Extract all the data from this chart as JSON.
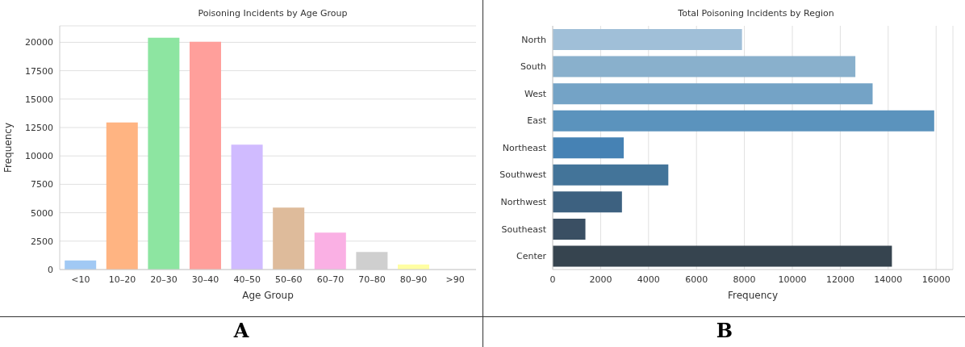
{
  "chart_data": [
    {
      "type": "bar",
      "title": "Poisoning Incidents by Age Group",
      "xlabel": "Age Group",
      "ylabel": "Frequency",
      "categories": [
        "<10",
        "10–20",
        "20–30",
        "30–40",
        "40–50",
        "50–60",
        "60–70",
        "70–80",
        "80–90",
        ">90"
      ],
      "values": [
        800,
        12950,
        20400,
        20050,
        11000,
        5450,
        3250,
        1550,
        450,
        0
      ],
      "colors": [
        "#a1c9f4",
        "#ffb482",
        "#8de5a1",
        "#ff9f9b",
        "#d0bbff",
        "#debb9b",
        "#fab0e4",
        "#cfcfcf",
        "#fffea3",
        "#b9f2f0"
      ],
      "ylim": [
        0,
        21450
      ],
      "yticks": [
        0,
        2500,
        5000,
        7500,
        10000,
        12500,
        15000,
        17500,
        20000
      ],
      "grid": "y",
      "annotations": [
        "A"
      ]
    },
    {
      "type": "bar",
      "orientation": "horizontal",
      "title": "Total Poisoning Incidents by Region",
      "xlabel": "Frequency",
      "categories": [
        "North",
        "South",
        "West",
        "East",
        "Northeast",
        "Southwest",
        "Northwest",
        "Southeast",
        "Center"
      ],
      "values": [
        7900,
        12630,
        13350,
        15920,
        2965,
        4825,
        2890,
        1365,
        14155
      ],
      "colors": [
        "#a0bfd8",
        "#89b0cc",
        "#74a3c6",
        "#5b93bd",
        "#4682b4",
        "#437499",
        "#3d6180",
        "#3a4f63",
        "#36444f"
      ],
      "xlim": [
        0,
        16700
      ],
      "xticks": [
        0,
        2000,
        4000,
        6000,
        8000,
        10000,
        12000,
        14000,
        16000
      ],
      "grid": "x",
      "annotations": [
        "B"
      ]
    }
  ]
}
